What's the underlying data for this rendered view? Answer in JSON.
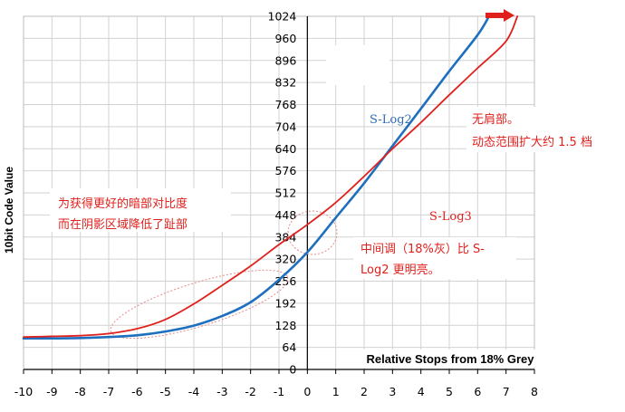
{
  "chart_data": {
    "type": "line",
    "title": "",
    "xlabel": "Relative Stops from 18% Grey",
    "ylabel": "10bit Code Value",
    "xlim": [
      -10,
      8
    ],
    "ylim": [
      0,
      1024
    ],
    "x_ticks": [
      "-10",
      "-9",
      "-8",
      "-7",
      "-6",
      "-5",
      "-4",
      "-3",
      "-2",
      "-1",
      "0",
      "1",
      "2",
      "3",
      "4",
      "5",
      "6",
      "7",
      "8"
    ],
    "y_ticks": [
      "0",
      "64",
      "128",
      "192",
      "256",
      "320",
      "384",
      "448",
      "512",
      "576",
      "640",
      "704",
      "768",
      "832",
      "896",
      "960",
      "1024"
    ],
    "grid": true,
    "series": [
      {
        "name": "S-Log2",
        "color": "#1f6fbf",
        "x": [
          -10,
          -9,
          -8,
          -7,
          -6,
          -5,
          -4,
          -3,
          -2,
          -1,
          0,
          1,
          2,
          3,
          4,
          5,
          6,
          6.4
        ],
        "y": [
          90,
          90,
          91,
          94,
          99,
          110,
          127,
          155,
          195,
          260,
          340,
          440,
          540,
          648,
          756,
          865,
          970,
          1024
        ]
      },
      {
        "name": "S-Log3",
        "color": "#e0201c",
        "x": [
          -10,
          -9,
          -8,
          -7,
          -6,
          -5,
          -4,
          -3,
          -2,
          -1,
          0,
          1,
          2,
          3,
          4,
          5,
          6,
          7,
          7.4
        ],
        "y": [
          94,
          96,
          98,
          104,
          118,
          145,
          190,
          244,
          300,
          362,
          420,
          484,
          560,
          640,
          716,
          796,
          874,
          952,
          1024
        ]
      }
    ],
    "annotations": {
      "slog2_label": "S-Log2",
      "slog3_label": "S-Log3",
      "no_shoulder": [
        "无肩部。",
        "动态范围扩大约 1.5 档"
      ],
      "shadow_note": [
        "为获得更好的暗部对比度",
        "而在阴影区域降低了趾部"
      ],
      "midtone_note": [
        "中间调（18%灰）比 S-",
        "Log2 更明亮。"
      ]
    }
  }
}
